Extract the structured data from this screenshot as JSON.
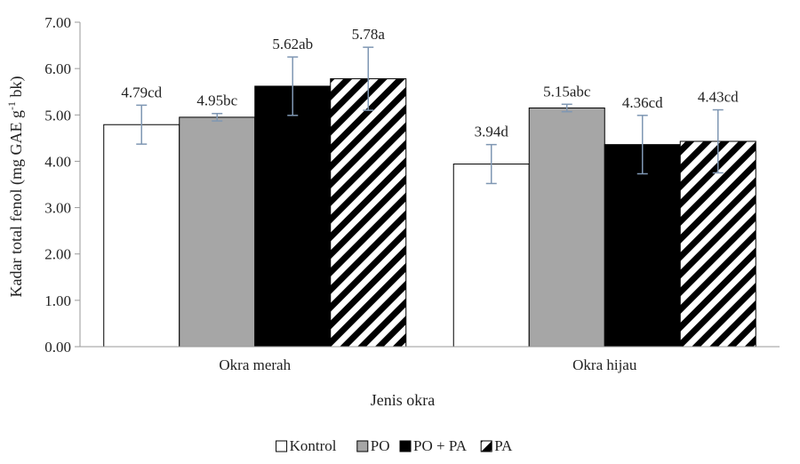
{
  "chart_data": {
    "type": "bar",
    "xlabel": "Jenis okra",
    "ylabel_main": "Kadar total fenol (mg GAE g",
    "ylabel_sup": "-1",
    "ylabel_tail": " bk)",
    "ylim": [
      0,
      7
    ],
    "ytick_step": 1,
    "yticks": [
      "0.00",
      "1.00",
      "2.00",
      "3.00",
      "4.00",
      "5.00",
      "6.00",
      "7.00"
    ],
    "grid": false,
    "legend_position": "bottom",
    "categories": [
      "Okra merah",
      "Okra hijau"
    ],
    "series": [
      {
        "name": "Kontrol",
        "values": [
          4.79,
          3.94
        ],
        "errors": [
          0.42,
          0.42
        ],
        "labels": [
          "4.79cd",
          "3.94d"
        ],
        "fill": "white"
      },
      {
        "name": "PO",
        "values": [
          4.95,
          5.15
        ],
        "errors": [
          0.08,
          0.08
        ],
        "labels": [
          "4.95bc",
          "5.15abc"
        ],
        "fill": "gray"
      },
      {
        "name": "PO + PA",
        "values": [
          5.62,
          4.36
        ],
        "errors": [
          0.63,
          0.63
        ],
        "labels": [
          "5.62ab",
          "4.36cd"
        ],
        "fill": "black"
      },
      {
        "name": "PA",
        "values": [
          5.78,
          4.43
        ],
        "errors": [
          0.68,
          0.68
        ],
        "labels": [
          "5.78a",
          "4.43cd"
        ],
        "fill": "hatch"
      }
    ],
    "colors": {
      "white": "#ffffff",
      "gray": "#a6a6a6",
      "black": "#000000",
      "error_bar": "#7f97b3",
      "axis": "#9a9a9a"
    }
  }
}
